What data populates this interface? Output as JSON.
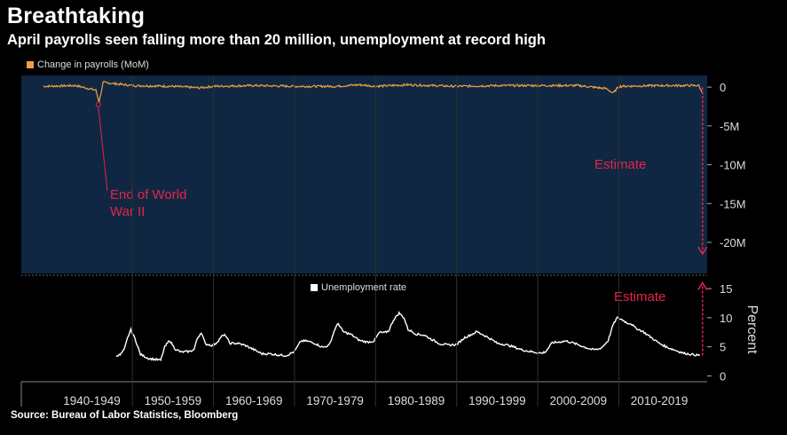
{
  "title": "Breathtaking",
  "subtitle": "April payrolls seen falling more than 20 million, unemployment at record high",
  "source": "Source: Bureau of Labor Statistics, Bloomberg",
  "colors": {
    "payrolls": "#f0a040",
    "panel": "#0f2742",
    "rate": "#ffffff",
    "annotation": "#e8234a",
    "grid": "#333333"
  },
  "chart_data": [
    {
      "type": "area",
      "legend": "Change in payrolls (MoM)",
      "ylabel": "",
      "ylim": [
        -24,
        1.5
      ],
      "yticks": [
        0,
        -5,
        -10,
        -15,
        -20
      ],
      "ytick_labels": [
        "0",
        "-5M",
        "-10M",
        "-15M",
        "-20M"
      ],
      "series": [
        {
          "name": "Change in payrolls (MoM)",
          "x": [
            1939.0,
            1943.0,
            1945.5,
            1945.9,
            1946.4,
            1950,
            1955,
            1958.3,
            1960,
            1965,
            1970,
            1975,
            1978,
            1980,
            1982,
            1984,
            1990,
            1995,
            2000,
            2005,
            2008.5,
            2009.3,
            2010,
            2015,
            2019.9,
            2020.25
          ],
          "y": [
            0.1,
            0.2,
            -0.4,
            -1.9,
            0.6,
            0.2,
            0.1,
            -0.1,
            0.1,
            0.2,
            0.1,
            0.1,
            0.3,
            0.1,
            0.2,
            0.3,
            0.1,
            0.2,
            0.2,
            0.2,
            -0.2,
            -0.8,
            0.1,
            0.2,
            0.2,
            -0.7
          ]
        },
        {
          "name": "Estimate",
          "x": [
            2020.33
          ],
          "y": [
            -21.5
          ]
        }
      ],
      "annotations": [
        {
          "text_lines": [
            "End of World",
            "War II"
          ],
          "x": 1945.8,
          "y": -1.9
        },
        {
          "text": "Estimate",
          "x": 2020.33,
          "y": -21.5
        }
      ]
    },
    {
      "type": "line",
      "legend": "Unemployment rate",
      "ylabel": "Percent",
      "ylim": [
        -1,
        17
      ],
      "yticks": [
        0,
        5,
        10,
        15
      ],
      "ytick_labels": [
        "0",
        "5",
        "10",
        "15"
      ],
      "series": [
        {
          "name": "Unemployment rate",
          "x": [
            1948.0,
            1948.5,
            1949.0,
            1949.4,
            1949.8,
            1950.3,
            1951.0,
            1952.0,
            1953.0,
            1953.5,
            1954.0,
            1954.6,
            1955.3,
            1956.0,
            1957.0,
            1957.6,
            1958.0,
            1958.5,
            1959.0,
            1960.0,
            1960.5,
            1961.0,
            1961.5,
            1962.0,
            1963.0,
            1964.0,
            1965.0,
            1966.0,
            1967.0,
            1968.0,
            1969.0,
            1970.0,
            1970.8,
            1971.5,
            1972.5,
            1973.5,
            1974.3,
            1975.0,
            1975.4,
            1976.0,
            1977.0,
            1978.0,
            1979.0,
            1979.8,
            1980.5,
            1981.0,
            1981.6,
            1982.2,
            1982.9,
            1983.5,
            1984.0,
            1985.0,
            1986.0,
            1987.0,
            1988.0,
            1989.0,
            1990.0,
            1991.0,
            1991.5,
            1992.5,
            1993.5,
            1994.5,
            1995.0,
            1996.0,
            1997.0,
            1998.0,
            1999.0,
            2000.0,
            2000.5,
            2001.0,
            2001.8,
            2002.5,
            2003.5,
            2004.5,
            2005.5,
            2006.5,
            2007.0,
            2007.5,
            2008.0,
            2008.7,
            2009.3,
            2009.8,
            2010.5,
            2011.0,
            2011.5,
            2012.0,
            2013.0,
            2014.0,
            2015.0,
            2016.0,
            2017.0,
            2018.0,
            2019.0,
            2019.5,
            2020.0
          ],
          "y": [
            3.5,
            3.6,
            4.5,
            6.5,
            7.9,
            6.5,
            3.7,
            3.0,
            2.8,
            2.7,
            5.0,
            6.1,
            4.6,
            4.1,
            4.2,
            4.5,
            6.4,
            7.5,
            5.5,
            5.2,
            5.9,
            6.8,
            7.0,
            5.6,
            5.6,
            5.2,
            4.5,
            3.8,
            3.8,
            3.6,
            3.5,
            4.2,
            6.0,
            6.0,
            5.6,
            4.9,
            5.3,
            8.1,
            9.0,
            7.6,
            7.1,
            6.1,
            5.8,
            6.0,
            7.5,
            7.4,
            7.7,
            9.6,
            10.8,
            10.0,
            8.0,
            7.2,
            7.0,
            6.2,
            5.5,
            5.3,
            5.4,
            6.6,
            6.9,
            7.6,
            6.9,
            6.1,
            5.6,
            5.4,
            5.0,
            4.5,
            4.2,
            4.0,
            3.9,
            4.2,
            5.7,
            5.8,
            6.0,
            5.6,
            5.1,
            4.6,
            4.5,
            4.6,
            5.0,
            6.1,
            8.8,
            10.0,
            9.6,
            9.1,
            9.0,
            8.3,
            7.6,
            6.6,
            5.6,
            4.9,
            4.4,
            3.9,
            3.7,
            3.6,
            3.5
          ]
        },
        {
          "name": "Estimate",
          "x": [
            2020.33
          ],
          "y": [
            16.0
          ]
        }
      ],
      "annotations": [
        {
          "text": "Estimate",
          "x": 2020.33,
          "y": 16.0
        }
      ]
    }
  ],
  "x_axis": {
    "xlim": [
      1936.3,
      2020.9
    ],
    "tick_labels": [
      "1940-1949",
      "1950-1959",
      "1960-1969",
      "1970-1979",
      "1980-1989",
      "1990-1999",
      "2000-2009",
      "2010-2019"
    ],
    "tick_starts": [
      1940,
      1950,
      1960,
      1970,
      1980,
      1990,
      2000,
      2010
    ],
    "boundaries": [
      1950,
      1960,
      1970,
      1980,
      1990,
      2000,
      2010
    ]
  }
}
